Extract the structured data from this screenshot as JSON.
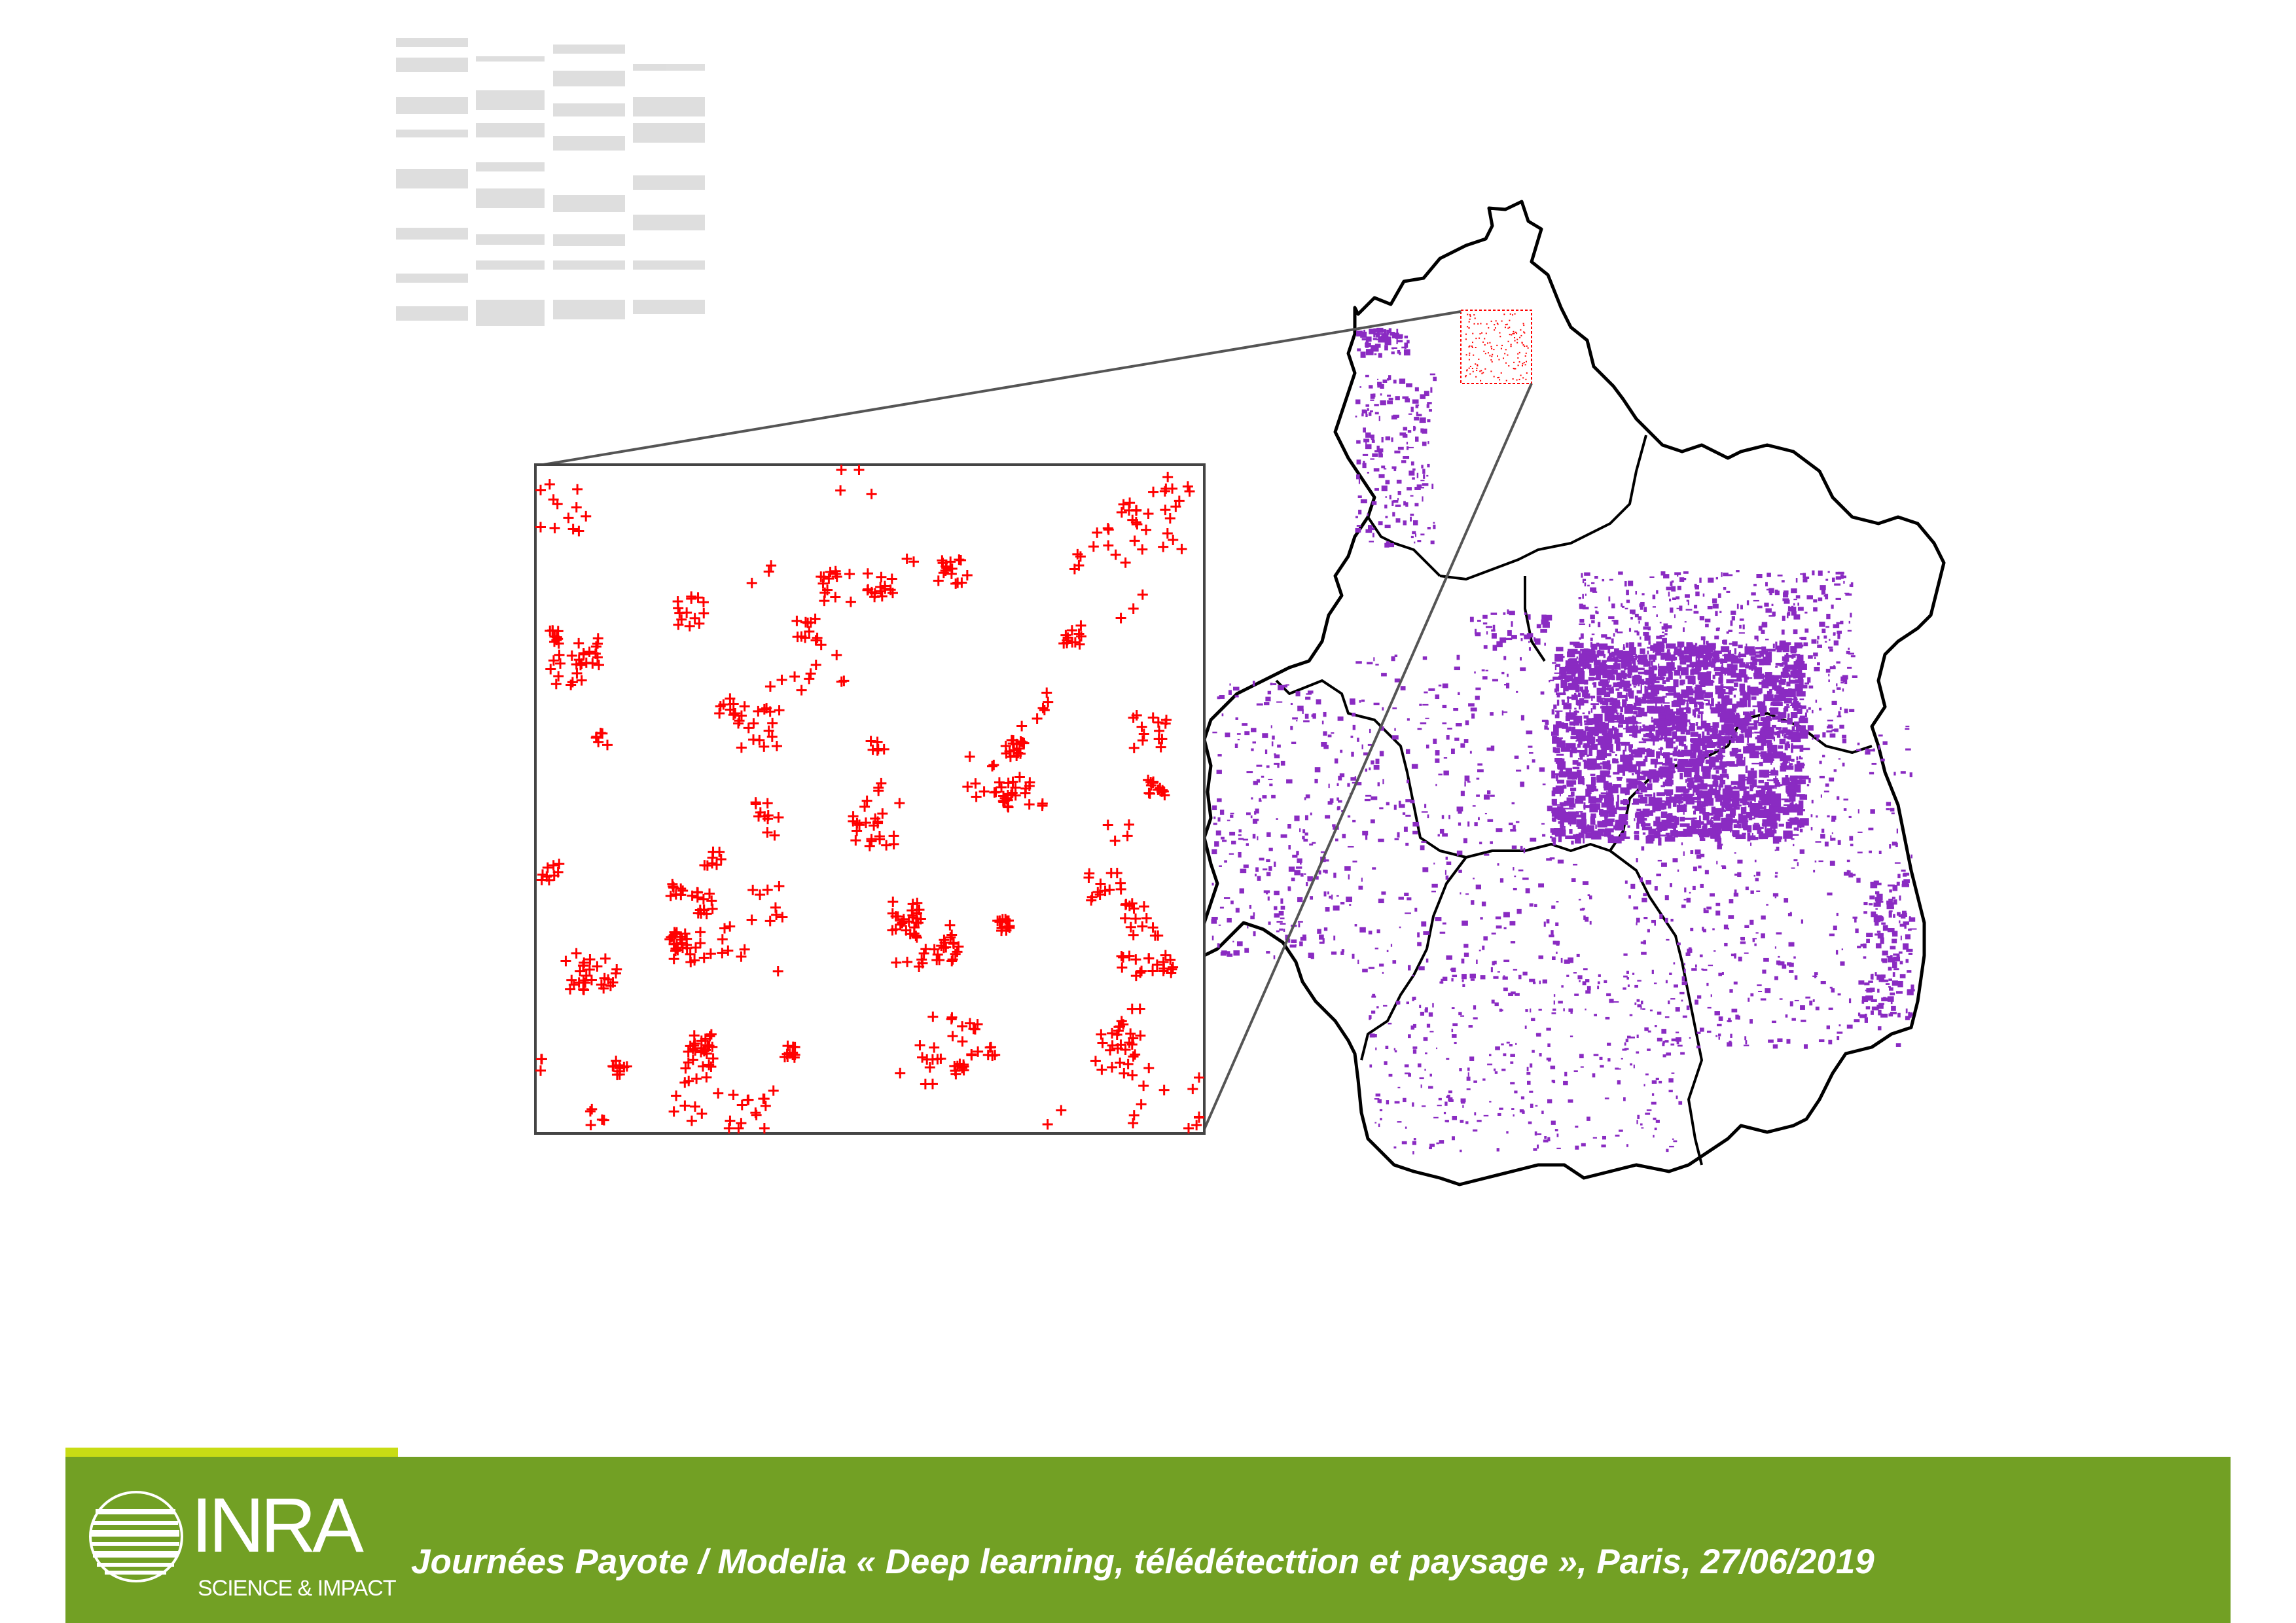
{
  "colors": {
    "footer_green": "#72a024",
    "footer_accent": "#c8dc14",
    "footer_text": "#ffffff",
    "zoom_markers": "#ff0000",
    "map_patches": "#8a2bc2",
    "map_borders": "#000000",
    "watermark": "#d9d9d9"
  },
  "footer": {
    "text": "Journées Payote / Modelia « Deep learning, télédétecttion et paysage », Paris, 27/06/2019"
  },
  "logo": {
    "name": "INRA",
    "tagline": "SCIENCE & IMPACT"
  },
  "map": {
    "zoom_marker_symbol": "+",
    "icons": [
      "region-map",
      "zoom-inset",
      "logo-icon"
    ]
  }
}
